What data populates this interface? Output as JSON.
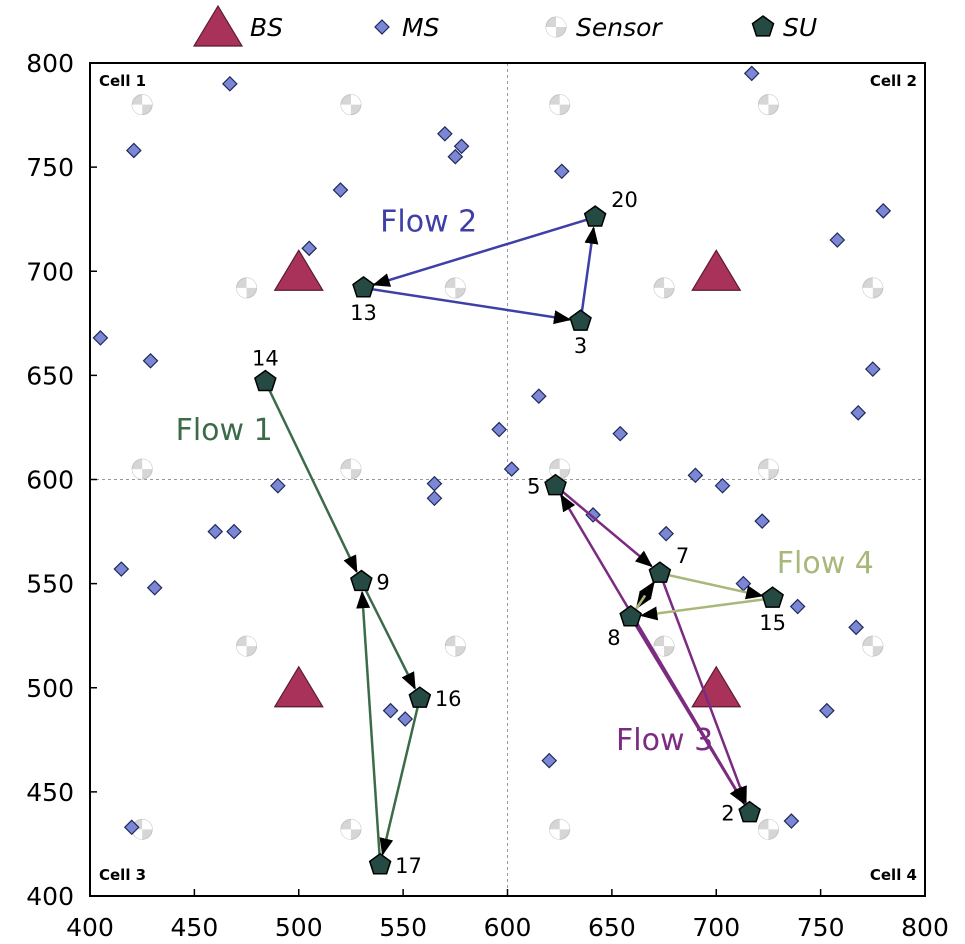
{
  "chart_data": {
    "type": "scatter",
    "xlim": [
      400,
      800
    ],
    "ylim": [
      400,
      800
    ],
    "xticks": [
      400,
      450,
      500,
      550,
      600,
      650,
      700,
      750,
      800
    ],
    "yticks": [
      400,
      450,
      500,
      550,
      600,
      650,
      700,
      750,
      800
    ],
    "grid": false,
    "divider": {
      "x": 600,
      "y": 600
    },
    "legend": {
      "placement": "top",
      "items": [
        {
          "key": "bs",
          "label": "BS",
          "color": "#a8325a"
        },
        {
          "key": "ms",
          "label": "MS",
          "color": "#7b87d4"
        },
        {
          "key": "sensor",
          "label": "Sensor",
          "color": "#c8c8c8"
        },
        {
          "key": "su",
          "label": "SU",
          "color": "#1f4640"
        }
      ]
    },
    "cells": [
      {
        "label": "Cell 1",
        "corner": "top-left"
      },
      {
        "label": "Cell 2",
        "corner": "top-right"
      },
      {
        "label": "Cell 3",
        "corner": "bottom-left"
      },
      {
        "label": "Cell 4",
        "corner": "bottom-right"
      }
    ],
    "bs": [
      {
        "x": 500,
        "y": 700
      },
      {
        "x": 700,
        "y": 700
      },
      {
        "x": 500,
        "y": 500
      },
      {
        "x": 700,
        "y": 500
      }
    ],
    "sensors": [
      {
        "x": 425,
        "y": 780
      },
      {
        "x": 525,
        "y": 780
      },
      {
        "x": 625,
        "y": 780
      },
      {
        "x": 725,
        "y": 780
      },
      {
        "x": 475,
        "y": 692
      },
      {
        "x": 575,
        "y": 692
      },
      {
        "x": 675,
        "y": 692
      },
      {
        "x": 775,
        "y": 692
      },
      {
        "x": 425,
        "y": 605
      },
      {
        "x": 525,
        "y": 605
      },
      {
        "x": 625,
        "y": 605
      },
      {
        "x": 725,
        "y": 605
      },
      {
        "x": 475,
        "y": 520
      },
      {
        "x": 575,
        "y": 520
      },
      {
        "x": 675,
        "y": 520
      },
      {
        "x": 775,
        "y": 520
      },
      {
        "x": 425,
        "y": 432
      },
      {
        "x": 525,
        "y": 432
      },
      {
        "x": 625,
        "y": 432
      },
      {
        "x": 725,
        "y": 432
      }
    ],
    "ms": [
      {
        "x": 467,
        "y": 790
      },
      {
        "x": 421,
        "y": 758
      },
      {
        "x": 570,
        "y": 766
      },
      {
        "x": 578,
        "y": 760
      },
      {
        "x": 575,
        "y": 755
      },
      {
        "x": 520,
        "y": 739
      },
      {
        "x": 505,
        "y": 711
      },
      {
        "x": 717,
        "y": 795
      },
      {
        "x": 626,
        "y": 748
      },
      {
        "x": 780,
        "y": 729
      },
      {
        "x": 758,
        "y": 715
      },
      {
        "x": 405,
        "y": 668
      },
      {
        "x": 429,
        "y": 657
      },
      {
        "x": 615,
        "y": 640
      },
      {
        "x": 775,
        "y": 653
      },
      {
        "x": 768,
        "y": 632
      },
      {
        "x": 596,
        "y": 624
      },
      {
        "x": 654,
        "y": 622
      },
      {
        "x": 602,
        "y": 605
      },
      {
        "x": 565,
        "y": 598
      },
      {
        "x": 565,
        "y": 591
      },
      {
        "x": 490,
        "y": 597
      },
      {
        "x": 690,
        "y": 602
      },
      {
        "x": 703,
        "y": 597
      },
      {
        "x": 641,
        "y": 583
      },
      {
        "x": 722,
        "y": 580
      },
      {
        "x": 676,
        "y": 574
      },
      {
        "x": 460,
        "y": 575
      },
      {
        "x": 469,
        "y": 575
      },
      {
        "x": 415,
        "y": 557
      },
      {
        "x": 431,
        "y": 548
      },
      {
        "x": 713,
        "y": 550
      },
      {
        "x": 739,
        "y": 539
      },
      {
        "x": 767,
        "y": 529
      },
      {
        "x": 544,
        "y": 489
      },
      {
        "x": 551,
        "y": 485
      },
      {
        "x": 753,
        "y": 489
      },
      {
        "x": 620,
        "y": 465
      },
      {
        "x": 736,
        "y": 436
      },
      {
        "x": 420,
        "y": 433
      }
    ],
    "su": [
      {
        "id": "20",
        "x": 642,
        "y": 726,
        "label_pos": "top-right"
      },
      {
        "id": "13",
        "x": 531,
        "y": 692,
        "label_pos": "bottom"
      },
      {
        "id": "3",
        "x": 635,
        "y": 676,
        "label_pos": "bottom"
      },
      {
        "id": "14",
        "x": 484,
        "y": 647,
        "label_pos": "top"
      },
      {
        "id": "9",
        "x": 530,
        "y": 551,
        "label_pos": "right"
      },
      {
        "id": "16",
        "x": 558,
        "y": 495,
        "label_pos": "right"
      },
      {
        "id": "17",
        "x": 539,
        "y": 415,
        "label_pos": "right"
      },
      {
        "id": "5",
        "x": 623,
        "y": 597,
        "label_pos": "left"
      },
      {
        "id": "7",
        "x": 673,
        "y": 555,
        "label_pos": "top-right"
      },
      {
        "id": "8",
        "x": 659,
        "y": 534,
        "label_pos": "bottom-left"
      },
      {
        "id": "15",
        "x": 727,
        "y": 543,
        "label_pos": "bottom"
      },
      {
        "id": "2",
        "x": 716,
        "y": 440,
        "label_pos": "left"
      }
    ],
    "flows": [
      {
        "name": "Flow 2",
        "color": "#3f3fa8",
        "links": [
          [
            "3",
            "20"
          ],
          [
            "20",
            "13"
          ],
          [
            "13",
            "3"
          ]
        ]
      },
      {
        "name": "Flow 1",
        "color": "#3c6b4a",
        "links": [
          [
            "14",
            "9"
          ],
          [
            "9",
            "16"
          ],
          [
            "16",
            "17"
          ],
          [
            "17",
            "9"
          ]
        ]
      },
      {
        "name": "Flow 3",
        "color": "#7b2b80",
        "links": [
          [
            "2",
            "5"
          ],
          [
            "5",
            "7"
          ],
          [
            "7",
            "8"
          ],
          [
            "8",
            "2"
          ],
          [
            "7",
            "2"
          ]
        ]
      },
      {
        "name": "Flow 4",
        "color": "#a8b87a",
        "links": [
          [
            "8",
            "7"
          ],
          [
            "7",
            "15"
          ],
          [
            "15",
            "8"
          ]
        ]
      }
    ],
    "flow_labels": [
      {
        "name": "Flow 2",
        "x": 539,
        "y": 719
      },
      {
        "name": "Flow 1",
        "x": 441,
        "y": 619
      },
      {
        "name": "Flow 4",
        "x": 729,
        "y": 555
      },
      {
        "name": "Flow 3",
        "x": 652,
        "y": 470
      }
    ]
  }
}
